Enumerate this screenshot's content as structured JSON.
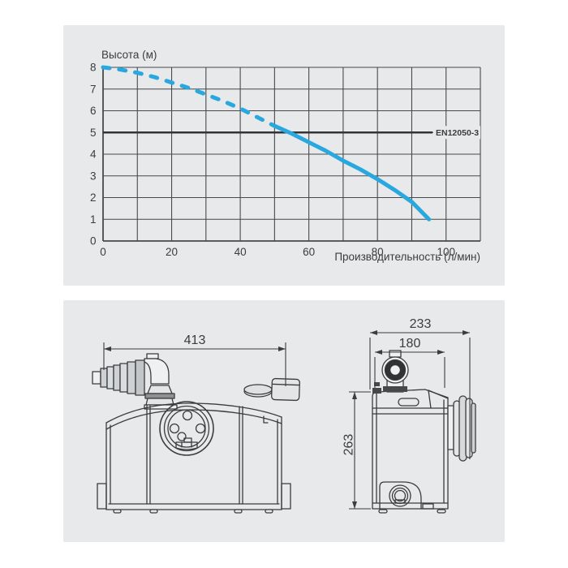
{
  "colors": {
    "panel_bg": "#e8e9ea",
    "line_art": "#3b3c3e",
    "curve": "#29a8e0",
    "ref_label": "#2aa1dc",
    "ref_line": "#323437",
    "grid": "#47494c",
    "text": "#3a3c3f"
  },
  "chart_data": {
    "type": "line",
    "title": "",
    "ylabel_title": "Высота (м)",
    "xlabel": "Производительность (л/мин)",
    "xlim": [
      0,
      110
    ],
    "ylim": [
      0,
      8
    ],
    "x_grid_step": 10,
    "y_grid_step": 1,
    "grid": "on",
    "x_tick_labels": [
      0,
      20,
      40,
      60,
      80,
      100
    ],
    "y_tick_labels": [
      0,
      1,
      2,
      3,
      4,
      5,
      6,
      7,
      8
    ],
    "series": [
      {
        "name": "head-flow-curve-upper",
        "style": "dashed",
        "color": "#29a8e0",
        "points": [
          [
            0,
            8
          ],
          [
            5,
            7.9
          ],
          [
            10,
            7.75
          ],
          [
            15,
            7.55
          ],
          [
            20,
            7.3
          ],
          [
            25,
            7.05
          ],
          [
            30,
            6.75
          ],
          [
            35,
            6.45
          ],
          [
            40,
            6.1
          ],
          [
            45,
            5.7
          ],
          [
            50,
            5.3
          ]
        ]
      },
      {
        "name": "head-flow-curve-lower",
        "style": "solid",
        "color": "#29a8e0",
        "points": [
          [
            50,
            5.3
          ],
          [
            55,
            4.95
          ],
          [
            60,
            4.55
          ],
          [
            65,
            4.15
          ],
          [
            70,
            3.7
          ],
          [
            75,
            3.3
          ],
          [
            80,
            2.85
          ],
          [
            85,
            2.35
          ],
          [
            90,
            1.8
          ],
          [
            95,
            1.0
          ]
        ]
      }
    ],
    "reference_line": {
      "y": 5,
      "label": "EN12050-3"
    }
  },
  "drawings": {
    "front_view": {
      "width_mm": "413"
    },
    "side_view": {
      "depth_mm": "233",
      "width_mm": "180",
      "height_mm": "263"
    }
  }
}
